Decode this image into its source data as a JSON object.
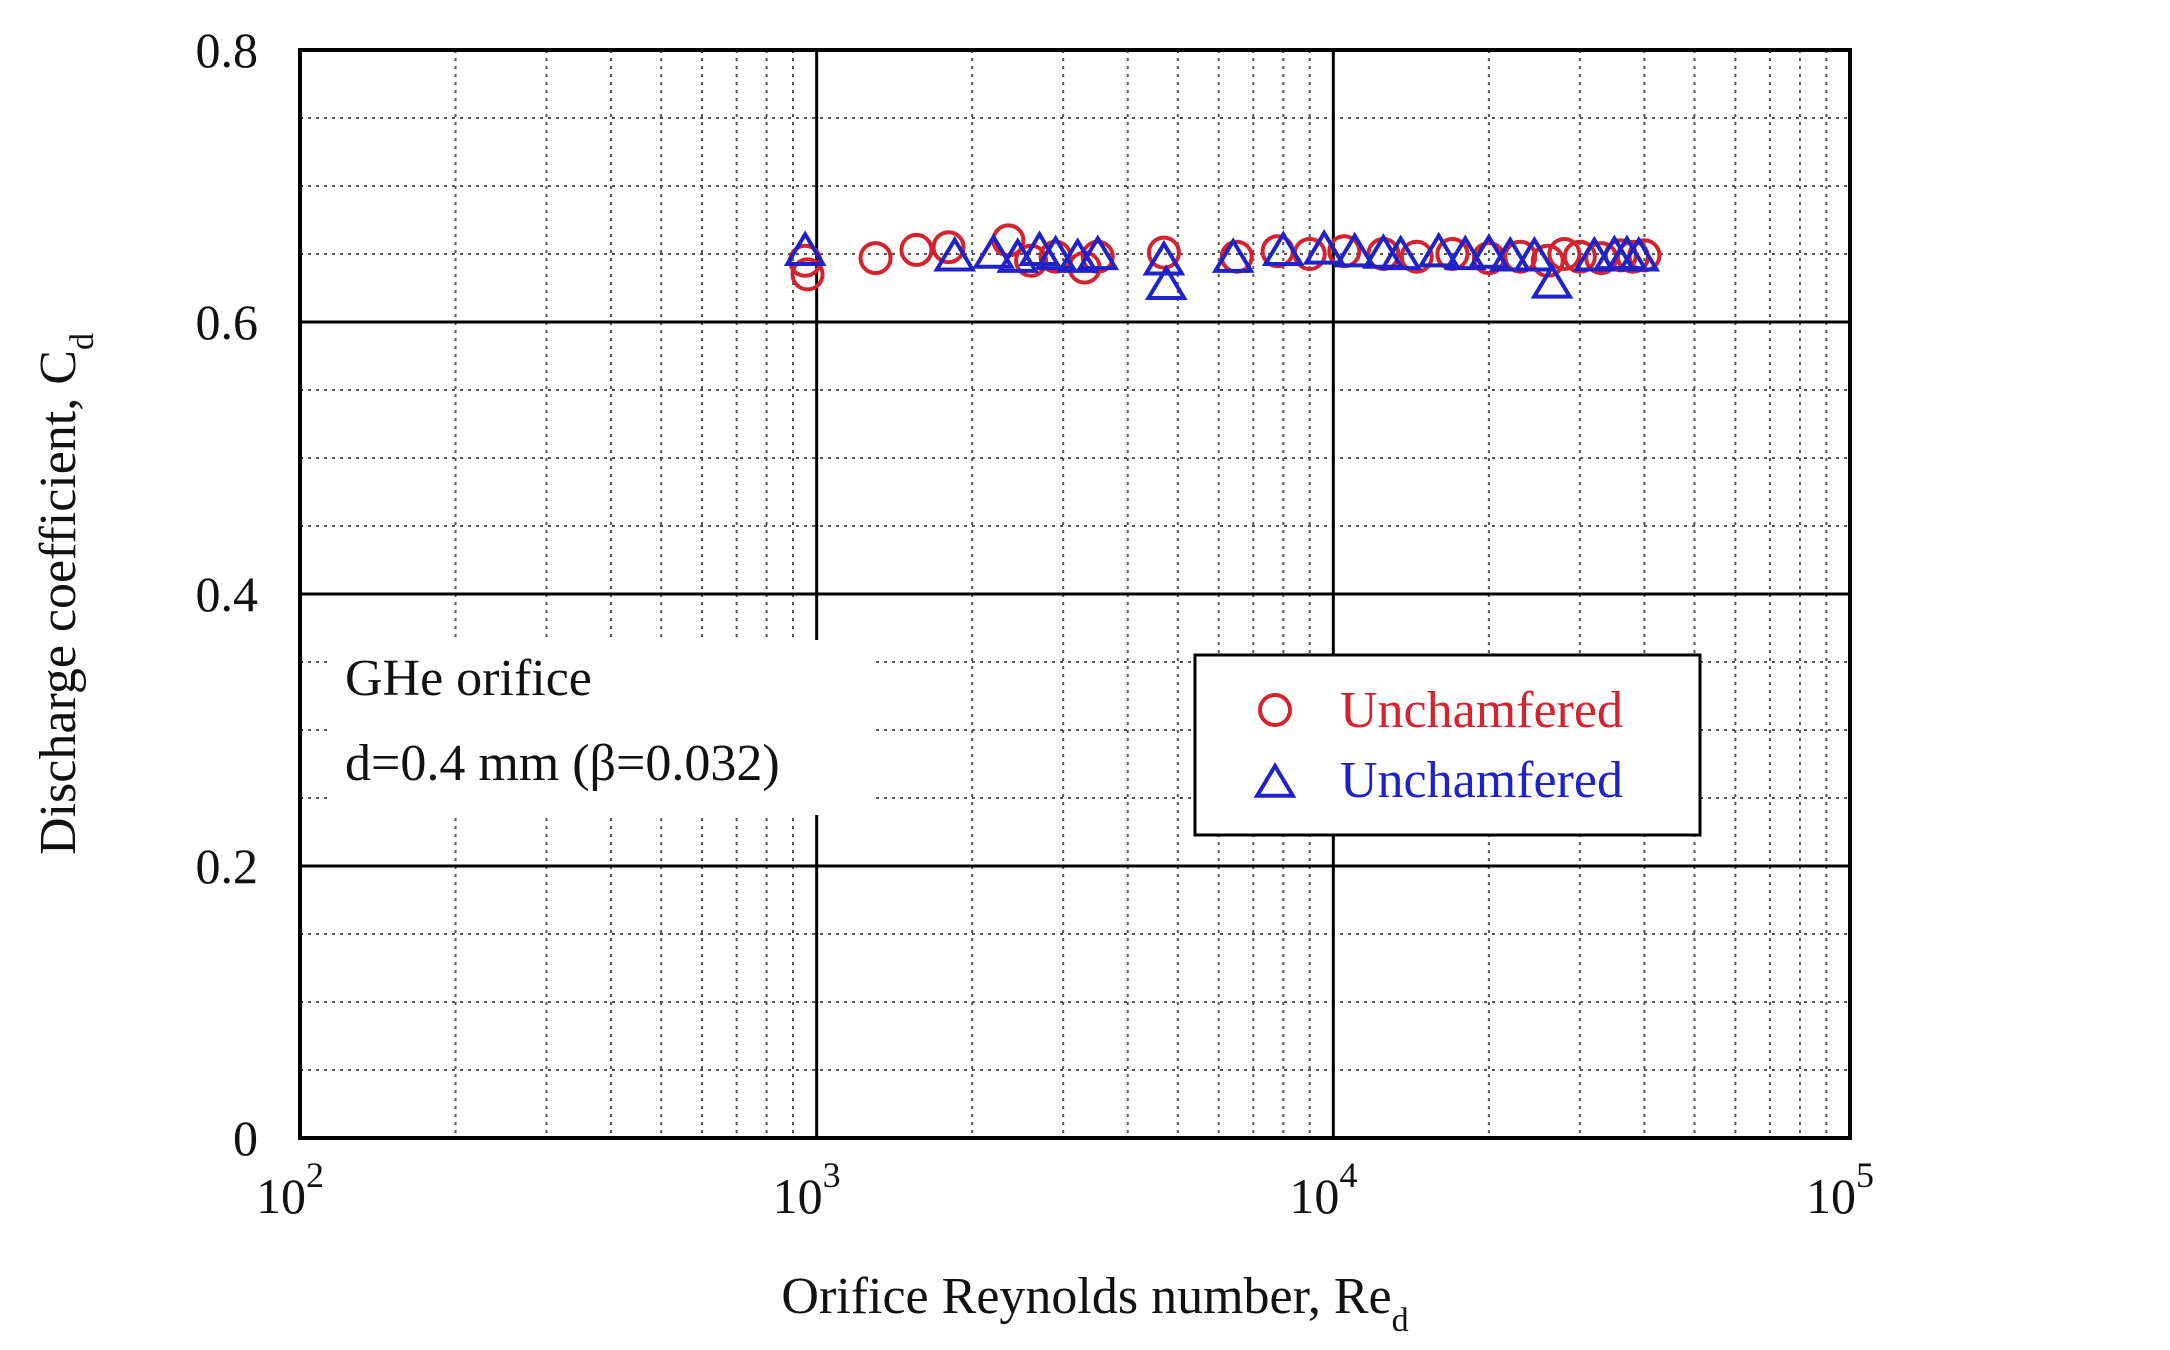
{
  "chart_data": {
    "type": "scatter",
    "title": "",
    "xlabel": "Orifice Reynolds number, Re",
    "xlabel_sub": "d",
    "ylabel": "Discharge coefficient, C",
    "ylabel_sub": "d",
    "x_scale": "log",
    "xlim": [
      100,
      100000
    ],
    "ylim": [
      0,
      0.8
    ],
    "x_ticks": [
      {
        "base": "10",
        "exp": "2"
      },
      {
        "base": "10",
        "exp": "3"
      },
      {
        "base": "10",
        "exp": "4"
      },
      {
        "base": "10",
        "exp": "5"
      }
    ],
    "y_ticks": [
      "0",
      "0.2",
      "0.4",
      "0.6",
      "0.8"
    ],
    "grid": true,
    "legend_position": "center-right",
    "annotation": [
      "GHe orifice",
      "d=0.4 mm (β=0.032)"
    ],
    "series": [
      {
        "name": "Unchamfered",
        "marker": "circle",
        "color": "#d4232e",
        "x": [
          950,
          960,
          1300,
          1560,
          1800,
          2350,
          2600,
          2900,
          3300,
          3500,
          4700,
          6500,
          7800,
          9000,
          10500,
          12500,
          14500,
          17000,
          20000,
          23000,
          26000,
          28000,
          30000,
          33000,
          36000,
          38000,
          40000
        ],
        "y": [
          0.645,
          0.635,
          0.647,
          0.653,
          0.655,
          0.66,
          0.645,
          0.648,
          0.64,
          0.648,
          0.651,
          0.648,
          0.652,
          0.65,
          0.652,
          0.65,
          0.648,
          0.65,
          0.647,
          0.648,
          0.645,
          0.65,
          0.648,
          0.647,
          0.649,
          0.648,
          0.649
        ]
      },
      {
        "name": "Unchamfered",
        "marker": "triangle",
        "color": "#1e22c8",
        "x": [
          950,
          1850,
          2200,
          2450,
          2700,
          2900,
          3200,
          3500,
          4700,
          4750,
          6400,
          8000,
          9600,
          11000,
          12500,
          13500,
          16000,
          18000,
          20000,
          22000,
          24500,
          26500,
          32000,
          35000,
          37000,
          39000
        ],
        "y": [
          0.652,
          0.648,
          0.65,
          0.647,
          0.652,
          0.649,
          0.647,
          0.649,
          0.645,
          0.627,
          0.647,
          0.652,
          0.653,
          0.651,
          0.65,
          0.649,
          0.651,
          0.649,
          0.65,
          0.648,
          0.648,
          0.628,
          0.648,
          0.649,
          0.649,
          0.648
        ]
      }
    ]
  }
}
